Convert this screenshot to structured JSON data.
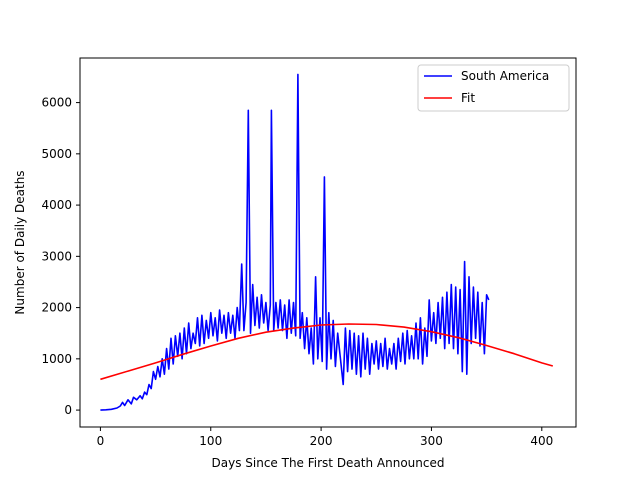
{
  "chart_data": {
    "type": "line",
    "title": "",
    "xlabel": "Days Since The First Death Announced",
    "ylabel": "Number of Daily Deaths",
    "xlim": [
      -18.5,
      431
    ],
    "ylim": [
      -330,
      6870
    ],
    "xticks": [
      0,
      100,
      200,
      300,
      400
    ],
    "yticks": [
      0,
      1000,
      2000,
      3000,
      4000,
      5000,
      6000
    ],
    "legend_position": "top-right",
    "series": [
      {
        "name": "South America",
        "color": "#0000ff",
        "points": [
          [
            0,
            0
          ],
          [
            5,
            5
          ],
          [
            10,
            15
          ],
          [
            15,
            40
          ],
          [
            18,
            80
          ],
          [
            20,
            150
          ],
          [
            22,
            90
          ],
          [
            25,
            200
          ],
          [
            28,
            120
          ],
          [
            30,
            250
          ],
          [
            33,
            200
          ],
          [
            36,
            280
          ],
          [
            38,
            220
          ],
          [
            40,
            350
          ],
          [
            42,
            300
          ],
          [
            44,
            500
          ],
          [
            46,
            420
          ],
          [
            48,
            750
          ],
          [
            50,
            600
          ],
          [
            52,
            850
          ],
          [
            54,
            650
          ],
          [
            56,
            1000
          ],
          [
            58,
            700
          ],
          [
            60,
            1200
          ],
          [
            62,
            800
          ],
          [
            64,
            1400
          ],
          [
            66,
            900
          ],
          [
            68,
            1450
          ],
          [
            70,
            1050
          ],
          [
            72,
            1500
          ],
          [
            74,
            1000
          ],
          [
            76,
            1600
          ],
          [
            78,
            1100
          ],
          [
            80,
            1700
          ],
          [
            82,
            1200
          ],
          [
            84,
            1500
          ],
          [
            86,
            1300
          ],
          [
            88,
            1800
          ],
          [
            90,
            1250
          ],
          [
            92,
            1850
          ],
          [
            94,
            1300
          ],
          [
            96,
            1750
          ],
          [
            98,
            1400
          ],
          [
            100,
            1900
          ],
          [
            102,
            1450
          ],
          [
            104,
            1800
          ],
          [
            106,
            1350
          ],
          [
            108,
            1950
          ],
          [
            110,
            1500
          ],
          [
            112,
            1850
          ],
          [
            114,
            1400
          ],
          [
            116,
            1900
          ],
          [
            118,
            1500
          ],
          [
            120,
            1850
          ],
          [
            122,
            1400
          ],
          [
            124,
            2000
          ],
          [
            126,
            1550
          ],
          [
            128,
            2850
          ],
          [
            130,
            1550
          ],
          [
            132,
            2100
          ],
          [
            134,
            5850
          ],
          [
            136,
            1500
          ],
          [
            138,
            2450
          ],
          [
            140,
            1650
          ],
          [
            142,
            2200
          ],
          [
            144,
            1600
          ],
          [
            146,
            2250
          ],
          [
            148,
            1700
          ],
          [
            150,
            2100
          ],
          [
            152,
            1550
          ],
          [
            154,
            2050
          ],
          [
            155,
            5850
          ],
          [
            157,
            1550
          ],
          [
            159,
            2100
          ],
          [
            161,
            1600
          ],
          [
            163,
            2150
          ],
          [
            165,
            1550
          ],
          [
            167,
            2050
          ],
          [
            169,
            1400
          ],
          [
            171,
            2150
          ],
          [
            173,
            1500
          ],
          [
            175,
            2100
          ],
          [
            177,
            1450
          ],
          [
            179,
            6550
          ],
          [
            181,
            1400
          ],
          [
            183,
            1900
          ],
          [
            185,
            1200
          ],
          [
            187,
            1800
          ],
          [
            189,
            1100
          ],
          [
            191,
            1600
          ],
          [
            193,
            900
          ],
          [
            195,
            2600
          ],
          [
            197,
            1000
          ],
          [
            199,
            1800
          ],
          [
            201,
            950
          ],
          [
            203,
            4550
          ],
          [
            205,
            800
          ],
          [
            207,
            1900
          ],
          [
            209,
            1000
          ],
          [
            211,
            1750
          ],
          [
            213,
            850
          ],
          [
            215,
            1500
          ],
          [
            217,
            1100
          ],
          [
            220,
            500
          ],
          [
            222,
            1600
          ],
          [
            224,
            750
          ],
          [
            226,
            1550
          ],
          [
            228,
            800
          ],
          [
            230,
            1500
          ],
          [
            232,
            700
          ],
          [
            234,
            1450
          ],
          [
            236,
            650
          ],
          [
            238,
            1500
          ],
          [
            240,
            800
          ],
          [
            242,
            1400
          ],
          [
            244,
            700
          ],
          [
            246,
            1300
          ],
          [
            248,
            900
          ],
          [
            250,
            1350
          ],
          [
            252,
            800
          ],
          [
            254,
            1300
          ],
          [
            256,
            850
          ],
          [
            258,
            1400
          ],
          [
            260,
            800
          ],
          [
            262,
            1200
          ],
          [
            264,
            900
          ],
          [
            266,
            1300
          ],
          [
            268,
            800
          ],
          [
            270,
            1400
          ],
          [
            272,
            950
          ],
          [
            274,
            1500
          ],
          [
            276,
            900
          ],
          [
            278,
            1550
          ],
          [
            280,
            1000
          ],
          [
            282,
            1450
          ],
          [
            284,
            1000
          ],
          [
            286,
            1700
          ],
          [
            288,
            1000
          ],
          [
            290,
            1800
          ],
          [
            292,
            900
          ],
          [
            294,
            1600
          ],
          [
            296,
            1050
          ],
          [
            298,
            2150
          ],
          [
            300,
            1350
          ],
          [
            302,
            1900
          ],
          [
            304,
            1300
          ],
          [
            306,
            2100
          ],
          [
            308,
            1400
          ],
          [
            310,
            2200
          ],
          [
            312,
            1200
          ],
          [
            314,
            2300
          ],
          [
            316,
            1300
          ],
          [
            318,
            2450
          ],
          [
            320,
            1200
          ],
          [
            322,
            2400
          ],
          [
            324,
            1100
          ],
          [
            326,
            2350
          ],
          [
            328,
            750
          ],
          [
            330,
            2900
          ],
          [
            332,
            700
          ],
          [
            334,
            2600
          ],
          [
            336,
            1300
          ],
          [
            338,
            2400
          ],
          [
            340,
            1400
          ],
          [
            342,
            2300
          ],
          [
            344,
            1250
          ],
          [
            346,
            2100
          ],
          [
            348,
            1100
          ],
          [
            350,
            2250
          ],
          [
            352,
            2150
          ]
        ]
      },
      {
        "name": "Fit",
        "color": "#ff0000",
        "points": [
          [
            0,
            600
          ],
          [
            25,
            760
          ],
          [
            50,
            920
          ],
          [
            75,
            1090
          ],
          [
            100,
            1250
          ],
          [
            125,
            1400
          ],
          [
            150,
            1520
          ],
          [
            175,
            1600
          ],
          [
            200,
            1660
          ],
          [
            225,
            1680
          ],
          [
            250,
            1670
          ],
          [
            275,
            1620
          ],
          [
            300,
            1530
          ],
          [
            325,
            1410
          ],
          [
            350,
            1260
          ],
          [
            375,
            1100
          ],
          [
            400,
            920
          ],
          [
            410,
            860
          ]
        ]
      }
    ]
  }
}
